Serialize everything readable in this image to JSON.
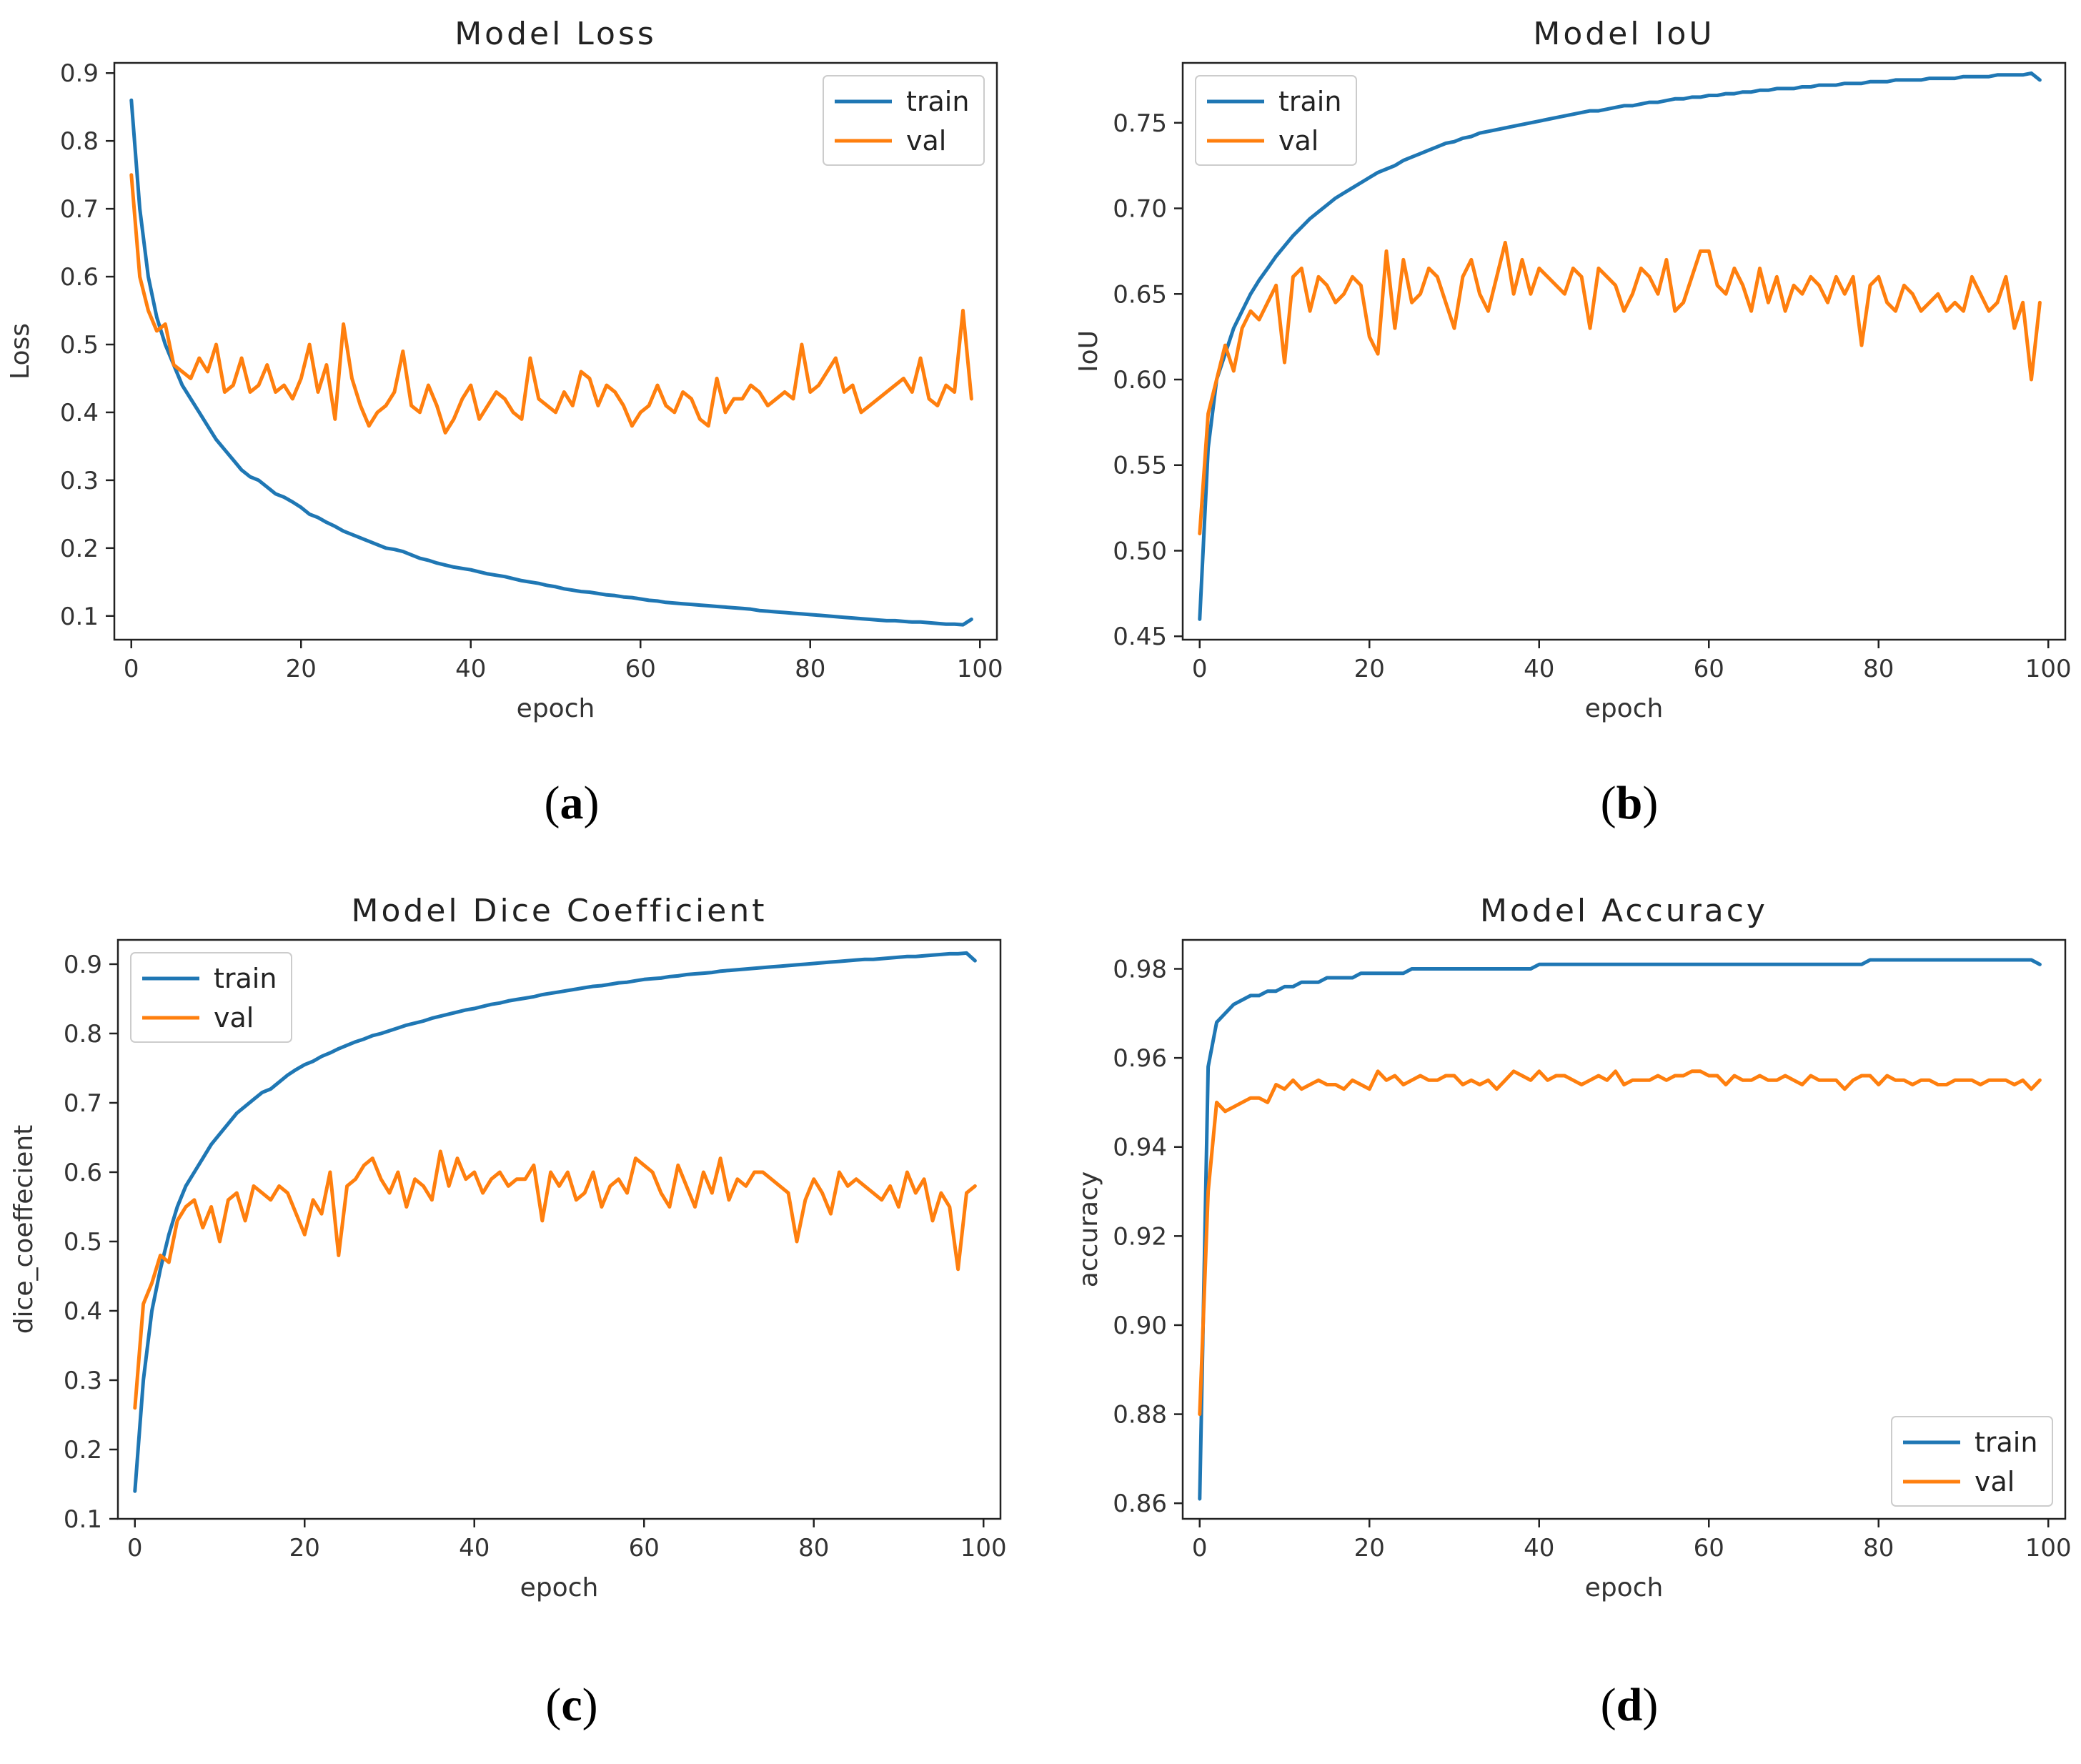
{
  "colors": {
    "train": "#1f77b4",
    "val": "#ff7f0e"
  },
  "chart_data": [
    {
      "id": "a",
      "type": "line",
      "caption": "a",
      "title": "Model Loss",
      "xlabel": "epoch",
      "ylabel": "Loss",
      "xlim": [
        -2,
        102
      ],
      "ylim": [
        0.065,
        0.915
      ],
      "xticks": [
        0,
        20,
        40,
        60,
        80,
        100
      ],
      "yticks": [
        0.1,
        0.2,
        0.3,
        0.4,
        0.5,
        0.6,
        0.7,
        0.8,
        0.9
      ],
      "ytick_labels": [
        "0.1",
        "0.2",
        "0.3",
        "0.4",
        "0.5",
        "0.6",
        "0.7",
        "0.8",
        "0.9"
      ],
      "legend": {
        "position": "top-right",
        "entries": [
          "train",
          "val"
        ]
      },
      "series": [
        {
          "name": "train",
          "color_key": "train",
          "values": [
            0.86,
            0.7,
            0.6,
            0.54,
            0.5,
            0.47,
            0.44,
            0.42,
            0.4,
            0.38,
            0.36,
            0.345,
            0.33,
            0.315,
            0.305,
            0.3,
            0.29,
            0.28,
            0.275,
            0.268,
            0.26,
            0.25,
            0.245,
            0.238,
            0.232,
            0.225,
            0.22,
            0.215,
            0.21,
            0.205,
            0.2,
            0.198,
            0.195,
            0.19,
            0.185,
            0.182,
            0.178,
            0.175,
            0.172,
            0.17,
            0.168,
            0.165,
            0.162,
            0.16,
            0.158,
            0.155,
            0.152,
            0.15,
            0.148,
            0.145,
            0.143,
            0.14,
            0.138,
            0.136,
            0.135,
            0.133,
            0.131,
            0.13,
            0.128,
            0.127,
            0.125,
            0.123,
            0.122,
            0.12,
            0.119,
            0.118,
            0.117,
            0.116,
            0.115,
            0.114,
            0.113,
            0.112,
            0.111,
            0.11,
            0.108,
            0.107,
            0.106,
            0.105,
            0.104,
            0.103,
            0.102,
            0.101,
            0.1,
            0.099,
            0.098,
            0.097,
            0.096,
            0.095,
            0.094,
            0.093,
            0.093,
            0.092,
            0.091,
            0.091,
            0.09,
            0.089,
            0.088,
            0.088,
            0.087,
            0.095
          ]
        },
        {
          "name": "val",
          "color_key": "val",
          "values": [
            0.75,
            0.6,
            0.55,
            0.52,
            0.53,
            0.47,
            0.46,
            0.45,
            0.48,
            0.46,
            0.5,
            0.43,
            0.44,
            0.48,
            0.43,
            0.44,
            0.47,
            0.43,
            0.44,
            0.42,
            0.45,
            0.5,
            0.43,
            0.47,
            0.39,
            0.53,
            0.45,
            0.41,
            0.38,
            0.4,
            0.41,
            0.43,
            0.49,
            0.41,
            0.4,
            0.44,
            0.41,
            0.37,
            0.39,
            0.42,
            0.44,
            0.39,
            0.41,
            0.43,
            0.42,
            0.4,
            0.39,
            0.48,
            0.42,
            0.41,
            0.4,
            0.43,
            0.41,
            0.46,
            0.45,
            0.41,
            0.44,
            0.43,
            0.41,
            0.38,
            0.4,
            0.41,
            0.44,
            0.41,
            0.4,
            0.43,
            0.42,
            0.39,
            0.38,
            0.45,
            0.4,
            0.42,
            0.42,
            0.44,
            0.43,
            0.41,
            0.42,
            0.43,
            0.42,
            0.5,
            0.43,
            0.44,
            0.46,
            0.48,
            0.43,
            0.44,
            0.4,
            0.41,
            0.42,
            0.43,
            0.44,
            0.45,
            0.43,
            0.48,
            0.42,
            0.41,
            0.44,
            0.43,
            0.55,
            0.42
          ]
        }
      ]
    },
    {
      "id": "b",
      "type": "line",
      "caption": "b",
      "title": "Model IoU",
      "xlabel": "epoch",
      "ylabel": "IoU",
      "xlim": [
        -2,
        102
      ],
      "ylim": [
        0.448,
        0.785
      ],
      "xticks": [
        0,
        20,
        40,
        60,
        80,
        100
      ],
      "yticks": [
        0.45,
        0.5,
        0.55,
        0.6,
        0.65,
        0.7,
        0.75
      ],
      "ytick_labels": [
        "0.45",
        "0.50",
        "0.55",
        "0.60",
        "0.65",
        "0.70",
        "0.75"
      ],
      "legend": {
        "position": "top-left",
        "entries": [
          "train",
          "val"
        ]
      },
      "series": [
        {
          "name": "train",
          "color_key": "train",
          "values": [
            0.46,
            0.56,
            0.6,
            0.615,
            0.63,
            0.64,
            0.65,
            0.658,
            0.665,
            0.672,
            0.678,
            0.684,
            0.689,
            0.694,
            0.698,
            0.702,
            0.706,
            0.709,
            0.712,
            0.715,
            0.718,
            0.721,
            0.723,
            0.725,
            0.728,
            0.73,
            0.732,
            0.734,
            0.736,
            0.738,
            0.739,
            0.741,
            0.742,
            0.744,
            0.745,
            0.746,
            0.747,
            0.748,
            0.749,
            0.75,
            0.751,
            0.752,
            0.753,
            0.754,
            0.755,
            0.756,
            0.757,
            0.757,
            0.758,
            0.759,
            0.76,
            0.76,
            0.761,
            0.762,
            0.762,
            0.763,
            0.764,
            0.764,
            0.765,
            0.765,
            0.766,
            0.766,
            0.767,
            0.767,
            0.768,
            0.768,
            0.769,
            0.769,
            0.77,
            0.77,
            0.77,
            0.771,
            0.771,
            0.772,
            0.772,
            0.772,
            0.773,
            0.773,
            0.773,
            0.774,
            0.774,
            0.774,
            0.775,
            0.775,
            0.775,
            0.775,
            0.776,
            0.776,
            0.776,
            0.776,
            0.777,
            0.777,
            0.777,
            0.777,
            0.778,
            0.778,
            0.778,
            0.778,
            0.779,
            0.775
          ]
        },
        {
          "name": "val",
          "color_key": "val",
          "values": [
            0.51,
            0.58,
            0.6,
            0.62,
            0.605,
            0.63,
            0.64,
            0.635,
            0.645,
            0.655,
            0.61,
            0.66,
            0.665,
            0.64,
            0.66,
            0.655,
            0.645,
            0.65,
            0.66,
            0.655,
            0.625,
            0.615,
            0.675,
            0.63,
            0.67,
            0.645,
            0.65,
            0.665,
            0.66,
            0.645,
            0.63,
            0.66,
            0.67,
            0.65,
            0.64,
            0.66,
            0.68,
            0.65,
            0.67,
            0.65,
            0.665,
            0.66,
            0.655,
            0.65,
            0.665,
            0.66,
            0.63,
            0.665,
            0.66,
            0.655,
            0.64,
            0.65,
            0.665,
            0.66,
            0.65,
            0.67,
            0.64,
            0.645,
            0.66,
            0.675,
            0.675,
            0.655,
            0.65,
            0.665,
            0.655,
            0.64,
            0.665,
            0.645,
            0.66,
            0.64,
            0.655,
            0.65,
            0.66,
            0.655,
            0.645,
            0.66,
            0.65,
            0.66,
            0.62,
            0.655,
            0.66,
            0.645,
            0.64,
            0.655,
            0.65,
            0.64,
            0.645,
            0.65,
            0.64,
            0.645,
            0.64,
            0.66,
            0.65,
            0.64,
            0.645,
            0.66,
            0.63,
            0.645,
            0.6,
            0.645
          ]
        }
      ]
    },
    {
      "id": "c",
      "type": "line",
      "caption": "c",
      "title": "Model Dice Coefficient",
      "xlabel": "epoch",
      "ylabel": "dice_coeffecient",
      "xlim": [
        -2,
        102
      ],
      "ylim": [
        0.1,
        0.935
      ],
      "xticks": [
        0,
        20,
        40,
        60,
        80,
        100
      ],
      "yticks": [
        0.1,
        0.2,
        0.3,
        0.4,
        0.5,
        0.6,
        0.7,
        0.8,
        0.9
      ],
      "ytick_labels": [
        "0.1",
        "0.2",
        "0.3",
        "0.4",
        "0.5",
        "0.6",
        "0.7",
        "0.8",
        "0.9"
      ],
      "legend": {
        "position": "top-left",
        "entries": [
          "train",
          "val"
        ]
      },
      "series": [
        {
          "name": "train",
          "color_key": "train",
          "values": [
            0.14,
            0.3,
            0.4,
            0.46,
            0.51,
            0.55,
            0.58,
            0.6,
            0.62,
            0.64,
            0.655,
            0.67,
            0.685,
            0.695,
            0.705,
            0.715,
            0.72,
            0.73,
            0.74,
            0.748,
            0.755,
            0.76,
            0.767,
            0.772,
            0.778,
            0.783,
            0.788,
            0.792,
            0.797,
            0.8,
            0.804,
            0.808,
            0.812,
            0.815,
            0.818,
            0.822,
            0.825,
            0.828,
            0.831,
            0.834,
            0.836,
            0.839,
            0.842,
            0.844,
            0.847,
            0.849,
            0.851,
            0.853,
            0.856,
            0.858,
            0.86,
            0.862,
            0.864,
            0.866,
            0.868,
            0.869,
            0.871,
            0.873,
            0.874,
            0.876,
            0.878,
            0.879,
            0.88,
            0.882,
            0.883,
            0.885,
            0.886,
            0.887,
            0.888,
            0.89,
            0.891,
            0.892,
            0.893,
            0.894,
            0.895,
            0.896,
            0.897,
            0.898,
            0.899,
            0.9,
            0.901,
            0.902,
            0.903,
            0.904,
            0.905,
            0.906,
            0.907,
            0.907,
            0.908,
            0.909,
            0.91,
            0.911,
            0.911,
            0.912,
            0.913,
            0.914,
            0.915,
            0.915,
            0.916,
            0.905
          ]
        },
        {
          "name": "val",
          "color_key": "val",
          "values": [
            0.26,
            0.41,
            0.44,
            0.48,
            0.47,
            0.53,
            0.55,
            0.56,
            0.52,
            0.55,
            0.5,
            0.56,
            0.57,
            0.53,
            0.58,
            0.57,
            0.56,
            0.58,
            0.57,
            0.54,
            0.51,
            0.56,
            0.54,
            0.6,
            0.48,
            0.58,
            0.59,
            0.61,
            0.62,
            0.59,
            0.57,
            0.6,
            0.55,
            0.59,
            0.58,
            0.56,
            0.63,
            0.58,
            0.62,
            0.59,
            0.6,
            0.57,
            0.59,
            0.6,
            0.58,
            0.59,
            0.59,
            0.61,
            0.53,
            0.6,
            0.58,
            0.6,
            0.56,
            0.57,
            0.6,
            0.55,
            0.58,
            0.59,
            0.57,
            0.62,
            0.61,
            0.6,
            0.57,
            0.55,
            0.61,
            0.58,
            0.55,
            0.6,
            0.57,
            0.62,
            0.56,
            0.59,
            0.58,
            0.6,
            0.6,
            0.59,
            0.58,
            0.57,
            0.5,
            0.56,
            0.59,
            0.57,
            0.54,
            0.6,
            0.58,
            0.59,
            0.58,
            0.57,
            0.56,
            0.58,
            0.55,
            0.6,
            0.57,
            0.59,
            0.53,
            0.57,
            0.55,
            0.46,
            0.57,
            0.58
          ]
        }
      ]
    },
    {
      "id": "d",
      "type": "line",
      "caption": "d",
      "title": "Model Accuracy",
      "xlabel": "epoch",
      "ylabel": "accuracy",
      "xlim": [
        -2,
        102
      ],
      "ylim": [
        0.8565,
        0.9865
      ],
      "xticks": [
        0,
        20,
        40,
        60,
        80,
        100
      ],
      "yticks": [
        0.86,
        0.88,
        0.9,
        0.92,
        0.94,
        0.96,
        0.98
      ],
      "ytick_labels": [
        "0.86",
        "0.88",
        "0.90",
        "0.92",
        "0.94",
        "0.96",
        "0.98"
      ],
      "legend": {
        "position": "bottom-right",
        "entries": [
          "train",
          "val"
        ]
      },
      "series": [
        {
          "name": "train",
          "color_key": "train",
          "values": [
            0.861,
            0.958,
            0.968,
            0.97,
            0.972,
            0.973,
            0.974,
            0.974,
            0.975,
            0.975,
            0.976,
            0.976,
            0.977,
            0.977,
            0.977,
            0.978,
            0.978,
            0.978,
            0.978,
            0.979,
            0.979,
            0.979,
            0.979,
            0.979,
            0.979,
            0.98,
            0.98,
            0.98,
            0.98,
            0.98,
            0.98,
            0.98,
            0.98,
            0.98,
            0.98,
            0.98,
            0.98,
            0.98,
            0.98,
            0.98,
            0.981,
            0.981,
            0.981,
            0.981,
            0.981,
            0.981,
            0.981,
            0.981,
            0.981,
            0.981,
            0.981,
            0.981,
            0.981,
            0.981,
            0.981,
            0.981,
            0.981,
            0.981,
            0.981,
            0.981,
            0.981,
            0.981,
            0.981,
            0.981,
            0.981,
            0.981,
            0.981,
            0.981,
            0.981,
            0.981,
            0.981,
            0.981,
            0.981,
            0.981,
            0.981,
            0.981,
            0.981,
            0.981,
            0.981,
            0.982,
            0.982,
            0.982,
            0.982,
            0.982,
            0.982,
            0.982,
            0.982,
            0.982,
            0.982,
            0.982,
            0.982,
            0.982,
            0.982,
            0.982,
            0.982,
            0.982,
            0.982,
            0.982,
            0.982,
            0.981
          ]
        },
        {
          "name": "val",
          "color_key": "val",
          "values": [
            0.88,
            0.93,
            0.95,
            0.948,
            0.949,
            0.95,
            0.951,
            0.951,
            0.95,
            0.954,
            0.953,
            0.955,
            0.953,
            0.954,
            0.955,
            0.954,
            0.954,
            0.953,
            0.955,
            0.954,
            0.953,
            0.957,
            0.955,
            0.956,
            0.954,
            0.955,
            0.956,
            0.955,
            0.955,
            0.956,
            0.956,
            0.954,
            0.955,
            0.954,
            0.955,
            0.953,
            0.955,
            0.957,
            0.956,
            0.955,
            0.957,
            0.955,
            0.956,
            0.956,
            0.955,
            0.954,
            0.955,
            0.956,
            0.955,
            0.957,
            0.954,
            0.955,
            0.955,
            0.955,
            0.956,
            0.955,
            0.956,
            0.956,
            0.957,
            0.957,
            0.956,
            0.956,
            0.954,
            0.956,
            0.955,
            0.955,
            0.956,
            0.955,
            0.955,
            0.956,
            0.955,
            0.954,
            0.956,
            0.955,
            0.955,
            0.955,
            0.953,
            0.955,
            0.956,
            0.956,
            0.954,
            0.956,
            0.955,
            0.955,
            0.954,
            0.955,
            0.955,
            0.954,
            0.954,
            0.955,
            0.955,
            0.955,
            0.954,
            0.955,
            0.955,
            0.955,
            0.954,
            0.955,
            0.953,
            0.955
          ]
        }
      ]
    }
  ]
}
